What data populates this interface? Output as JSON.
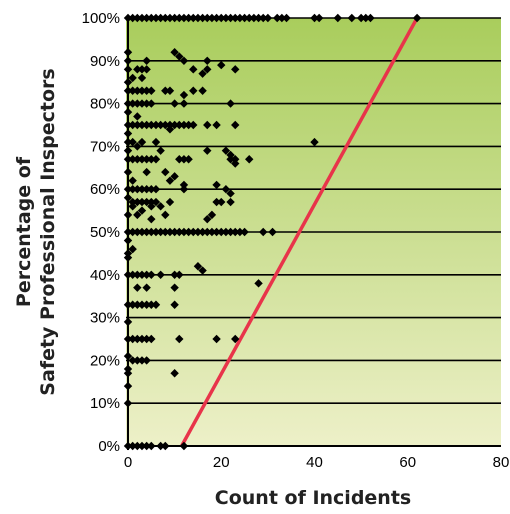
{
  "chart_data": {
    "type": "scatter",
    "title": "",
    "xlabel": "Count of Incidents",
    "ylabel_lines": [
      "Percentage of",
      "Safety Professional Inspectors"
    ],
    "xlim": [
      0,
      80
    ],
    "ylim": [
      0,
      100
    ],
    "x_ticks": [
      "0",
      "20",
      "40",
      "60",
      "80"
    ],
    "y_ticks": [
      "0%",
      "10%",
      "20%",
      "30%",
      "40%",
      "50%",
      "60%",
      "70%",
      "80%",
      "90%",
      "100%"
    ],
    "grid": "horizontal",
    "background": {
      "top": "#a9cd5c",
      "bottom": "#edf0c8"
    },
    "marker_color": "#000000",
    "trend_line": {
      "color": "#e8344a",
      "x": [
        11.5,
        62
      ],
      "y": [
        0,
        100
      ]
    },
    "series": [
      {
        "points": [
          [
            0,
            100
          ],
          [
            1,
            100
          ],
          [
            2,
            100
          ],
          [
            3,
            100
          ],
          [
            4,
            100
          ],
          [
            5,
            100
          ],
          [
            6,
            100
          ],
          [
            7,
            100
          ],
          [
            8,
            100
          ],
          [
            9,
            100
          ],
          [
            10,
            100
          ],
          [
            11,
            100
          ],
          [
            12,
            100
          ],
          [
            13,
            100
          ],
          [
            14,
            100
          ],
          [
            15,
            100
          ],
          [
            16,
            100
          ],
          [
            17,
            100
          ],
          [
            18,
            100
          ],
          [
            19,
            100
          ],
          [
            20,
            100
          ],
          [
            21,
            100
          ],
          [
            22,
            100
          ],
          [
            23,
            100
          ],
          [
            24,
            100
          ],
          [
            25,
            100
          ],
          [
            26,
            100
          ],
          [
            27,
            100
          ],
          [
            28,
            100
          ],
          [
            29,
            100
          ],
          [
            30,
            100
          ],
          [
            32,
            100
          ],
          [
            33,
            100
          ],
          [
            34,
            100
          ],
          [
            40,
            100
          ],
          [
            41,
            100
          ],
          [
            45,
            100
          ],
          [
            48,
            100
          ],
          [
            50,
            100
          ],
          [
            51,
            100
          ],
          [
            52,
            100
          ],
          [
            62,
            100
          ],
          [
            0,
            92
          ],
          [
            0,
            90
          ],
          [
            0,
            88
          ],
          [
            1,
            86
          ],
          [
            0,
            85
          ],
          [
            2,
            88
          ],
          [
            3,
            88
          ],
          [
            4,
            88
          ],
          [
            4,
            90
          ],
          [
            3,
            86
          ],
          [
            10,
            92
          ],
          [
            11,
            91
          ],
          [
            12,
            90
          ],
          [
            14,
            88
          ],
          [
            16,
            87
          ],
          [
            17,
            88
          ],
          [
            17,
            90
          ],
          [
            20,
            89
          ],
          [
            23,
            88
          ],
          [
            0,
            83
          ],
          [
            1,
            83
          ],
          [
            2,
            83
          ],
          [
            3,
            83
          ],
          [
            4,
            83
          ],
          [
            5,
            83
          ],
          [
            8,
            83
          ],
          [
            9,
            83
          ],
          [
            12,
            82
          ],
          [
            14,
            83
          ],
          [
            16,
            83
          ],
          [
            0,
            80
          ],
          [
            1,
            80
          ],
          [
            2,
            80
          ],
          [
            3,
            80
          ],
          [
            4,
            80
          ],
          [
            5,
            80
          ],
          [
            10,
            80
          ],
          [
            12,
            80
          ],
          [
            22,
            80
          ],
          [
            0,
            78
          ],
          [
            2,
            77
          ],
          [
            0,
            75
          ],
          [
            1,
            75
          ],
          [
            2,
            75
          ],
          [
            3,
            75
          ],
          [
            4,
            75
          ],
          [
            5,
            75
          ],
          [
            6,
            75
          ],
          [
            7,
            75
          ],
          [
            8,
            75
          ],
          [
            9,
            75
          ],
          [
            10,
            75
          ],
          [
            11,
            75
          ],
          [
            12,
            75
          ],
          [
            13,
            75
          ],
          [
            14,
            75
          ],
          [
            17,
            75
          ],
          [
            19,
            75
          ],
          [
            23,
            75
          ],
          [
            0,
            73
          ],
          [
            9,
            74
          ],
          [
            0,
            71
          ],
          [
            1,
            71
          ],
          [
            3,
            71
          ],
          [
            6,
            71
          ],
          [
            40,
            71
          ],
          [
            2,
            70
          ],
          [
            0,
            69
          ],
          [
            7,
            69
          ],
          [
            17,
            69
          ],
          [
            21,
            69
          ],
          [
            22,
            68
          ],
          [
            22,
            67
          ],
          [
            23,
            67
          ],
          [
            0,
            67
          ],
          [
            1,
            67
          ],
          [
            2,
            67
          ],
          [
            3,
            67
          ],
          [
            4,
            67
          ],
          [
            5,
            67
          ],
          [
            6,
            67
          ],
          [
            11,
            67
          ],
          [
            12,
            67
          ],
          [
            13,
            67
          ],
          [
            23,
            66
          ],
          [
            26,
            67
          ],
          [
            0,
            64
          ],
          [
            4,
            64
          ],
          [
            8,
            64
          ],
          [
            10,
            63
          ],
          [
            9,
            62
          ],
          [
            12,
            61
          ],
          [
            19,
            61
          ],
          [
            1,
            62
          ],
          [
            0,
            60
          ],
          [
            1,
            60
          ],
          [
            2,
            60
          ],
          [
            3,
            60
          ],
          [
            4,
            60
          ],
          [
            5,
            60
          ],
          [
            6,
            60
          ],
          [
            12,
            60
          ],
          [
            21,
            60
          ],
          [
            22,
            59
          ],
          [
            0,
            58
          ],
          [
            1,
            57
          ],
          [
            2,
            57
          ],
          [
            3,
            57
          ],
          [
            4,
            57
          ],
          [
            5,
            57
          ],
          [
            6,
            57
          ],
          [
            9,
            57
          ],
          [
            19,
            57
          ],
          [
            20,
            57
          ],
          [
            22,
            57
          ],
          [
            1,
            56
          ],
          [
            3,
            55
          ],
          [
            5,
            56
          ],
          [
            7,
            56
          ],
          [
            8,
            54
          ],
          [
            18,
            54
          ],
          [
            0,
            54
          ],
          [
            2,
            54
          ],
          [
            5,
            53
          ],
          [
            17,
            53
          ],
          [
            0,
            50
          ],
          [
            1,
            50
          ],
          [
            2,
            50
          ],
          [
            3,
            50
          ],
          [
            4,
            50
          ],
          [
            5,
            50
          ],
          [
            6,
            50
          ],
          [
            7,
            50
          ],
          [
            8,
            50
          ],
          [
            9,
            50
          ],
          [
            10,
            50
          ],
          [
            11,
            50
          ],
          [
            12,
            50
          ],
          [
            13,
            50
          ],
          [
            14,
            50
          ],
          [
            15,
            50
          ],
          [
            16,
            50
          ],
          [
            17,
            50
          ],
          [
            18,
            50
          ],
          [
            19,
            50
          ],
          [
            20,
            50
          ],
          [
            21,
            50
          ],
          [
            22,
            50
          ],
          [
            23,
            50
          ],
          [
            24,
            50
          ],
          [
            25,
            50
          ],
          [
            29,
            50
          ],
          [
            31,
            50
          ],
          [
            0,
            48
          ],
          [
            1,
            46
          ],
          [
            0,
            45
          ],
          [
            0,
            44
          ],
          [
            0,
            40
          ],
          [
            1,
            40
          ],
          [
            2,
            40
          ],
          [
            3,
            40
          ],
          [
            4,
            40
          ],
          [
            5,
            40
          ],
          [
            7,
            40
          ],
          [
            10,
            40
          ],
          [
            11,
            40
          ],
          [
            15,
            42
          ],
          [
            16,
            41
          ],
          [
            2,
            37
          ],
          [
            4,
            37
          ],
          [
            10,
            37
          ],
          [
            28,
            38
          ],
          [
            0,
            33
          ],
          [
            1,
            33
          ],
          [
            2,
            33
          ],
          [
            3,
            33
          ],
          [
            4,
            33
          ],
          [
            5,
            33
          ],
          [
            6,
            33
          ],
          [
            10,
            33
          ],
          [
            0,
            29
          ],
          [
            0,
            25
          ],
          [
            1,
            25
          ],
          [
            2,
            25
          ],
          [
            3,
            25
          ],
          [
            4,
            25
          ],
          [
            5,
            25
          ],
          [
            11,
            25
          ],
          [
            19,
            25
          ],
          [
            23,
            25
          ],
          [
            0,
            21
          ],
          [
            1,
            20
          ],
          [
            2,
            20
          ],
          [
            3,
            20
          ],
          [
            4,
            20
          ],
          [
            0,
            18
          ],
          [
            0,
            17
          ],
          [
            10,
            17
          ],
          [
            0,
            14
          ],
          [
            0,
            10
          ],
          [
            0,
            0
          ],
          [
            1,
            0
          ],
          [
            2,
            0
          ],
          [
            3,
            0
          ],
          [
            4,
            0
          ],
          [
            5,
            0
          ],
          [
            7,
            0
          ],
          [
            8,
            0
          ],
          [
            12,
            0
          ]
        ]
      }
    ]
  }
}
